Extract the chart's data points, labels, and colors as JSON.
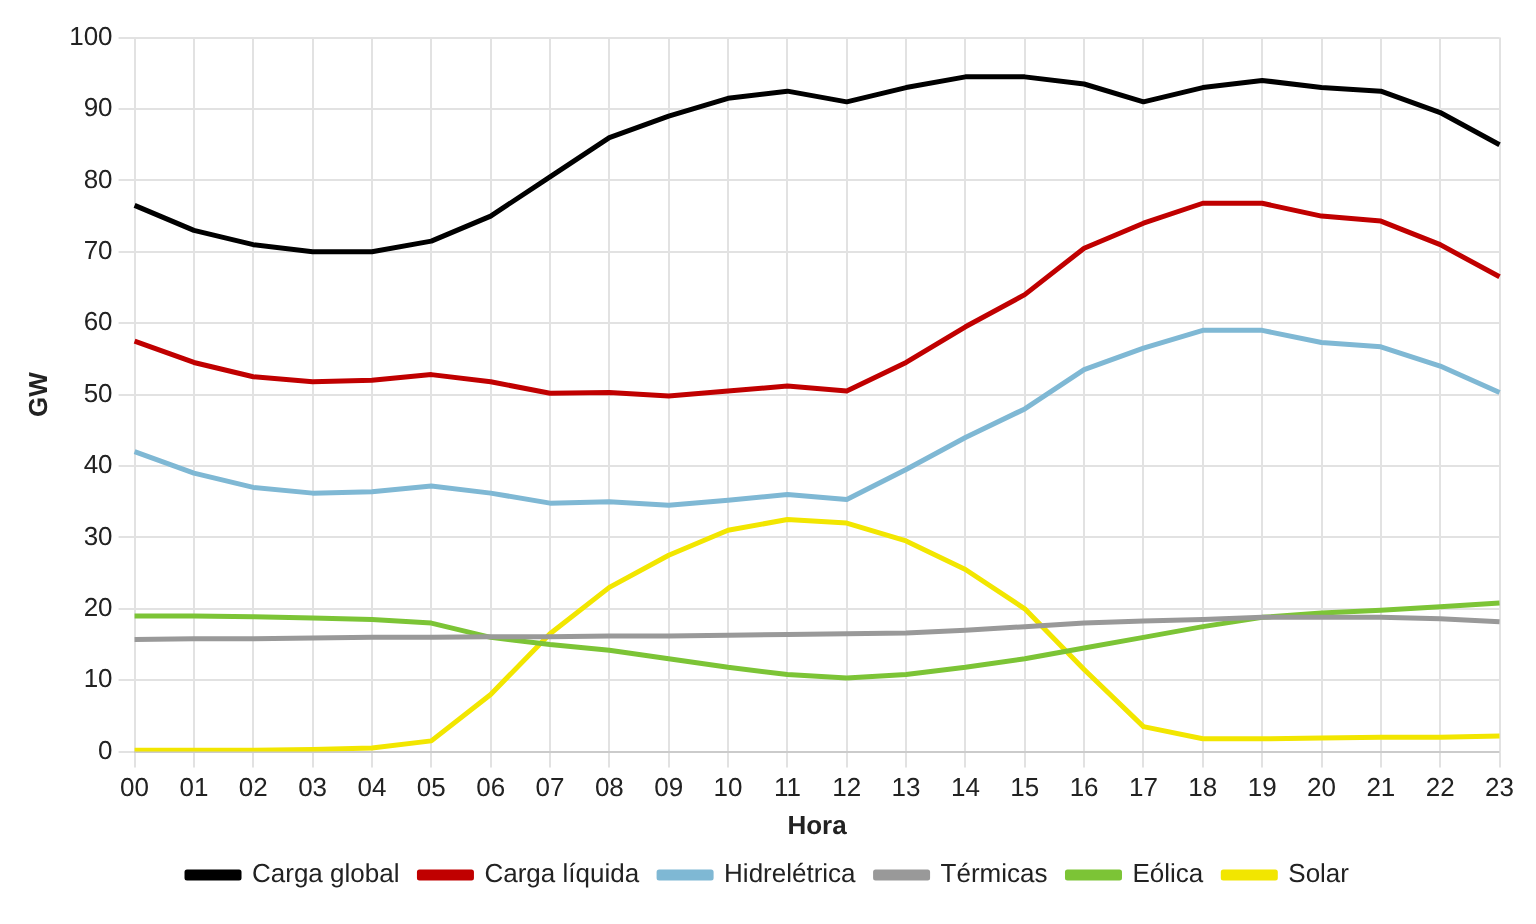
{
  "chart_data": {
    "type": "line",
    "xlabel": "Hora",
    "ylabel": "GW",
    "categories": [
      "00",
      "01",
      "02",
      "03",
      "04",
      "05",
      "06",
      "07",
      "08",
      "09",
      "10",
      "11",
      "12",
      "13",
      "14",
      "15",
      "16",
      "17",
      "18",
      "19",
      "20",
      "21",
      "22",
      "23"
    ],
    "series": [
      {
        "name": "Carga global",
        "color": "#000000",
        "values": [
          76.5,
          73,
          71,
          70,
          70,
          71.5,
          75,
          80.5,
          86,
          89,
          91.5,
          92.5,
          91,
          93,
          94.5,
          94.5,
          93.5,
          91,
          93,
          94,
          93,
          92.5,
          89.5,
          85
        ]
      },
      {
        "name": "Carga líquida",
        "color": "#c00000",
        "values": [
          57.5,
          54.5,
          52.5,
          51.8,
          52,
          52.8,
          51.8,
          50.2,
          50.3,
          49.8,
          50.5,
          51.2,
          50.5,
          54.5,
          59.5,
          64,
          70.5,
          74,
          76.8,
          76.8,
          75,
          74.3,
          71,
          66.5
        ]
      },
      {
        "name": "Hidrelétrica",
        "color": "#7fb8d4",
        "values": [
          42,
          39,
          37,
          36.2,
          36.4,
          37.2,
          36.2,
          34.8,
          35,
          34.5,
          35.2,
          36,
          35.3,
          39.5,
          44,
          48,
          53.5,
          56.5,
          59,
          59,
          57.3,
          56.7,
          54,
          50.3
        ]
      },
      {
        "name": "Térmicas",
        "color": "#999999",
        "values": [
          15.7,
          15.8,
          15.8,
          15.9,
          16,
          16,
          16.1,
          16.1,
          16.2,
          16.2,
          16.3,
          16.4,
          16.5,
          16.6,
          17,
          17.5,
          18,
          18.3,
          18.5,
          18.8,
          18.8,
          18.8,
          18.6,
          18.2
        ]
      },
      {
        "name": "Eólica",
        "color": "#7cc436",
        "values": [
          19,
          19,
          18.9,
          18.7,
          18.5,
          18,
          16,
          15,
          14.2,
          13,
          11.8,
          10.8,
          10.3,
          10.8,
          11.8,
          13,
          14.5,
          16,
          17.5,
          18.8,
          19.4,
          19.8,
          20.3,
          20.8
        ]
      },
      {
        "name": "Solar",
        "color": "#f2e600",
        "values": [
          0.2,
          0.2,
          0.2,
          0.3,
          0.5,
          1.5,
          8,
          16.5,
          23,
          27.5,
          31,
          32.5,
          32,
          29.5,
          25.5,
          20,
          11.5,
          3.5,
          1.8,
          1.8,
          1.9,
          2,
          2,
          2.2
        ]
      }
    ],
    "ylim": [
      0,
      100
    ],
    "yticks": [
      0,
      10,
      20,
      30,
      40,
      50,
      60,
      70,
      80,
      90,
      100
    ],
    "grid": true,
    "legend": "bottom",
    "marker": "none",
    "line_style": "solid"
  }
}
